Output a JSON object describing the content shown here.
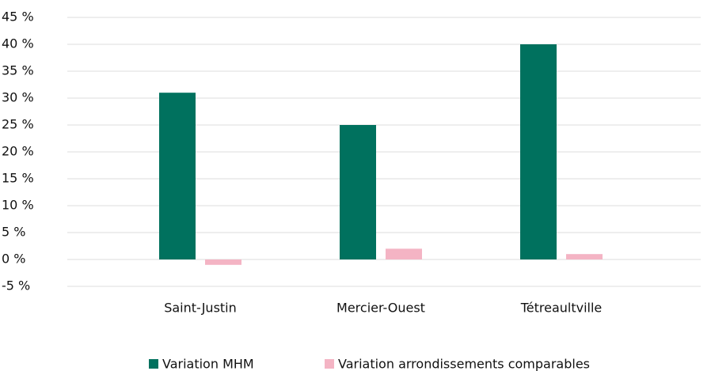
{
  "chart_data": {
    "type": "bar",
    "categories": [
      "Saint-Justin",
      "Mercier-Ouest",
      "Tétreaultville"
    ],
    "series": [
      {
        "name": "Variation MHM",
        "color": "#00715e",
        "values": [
          31,
          25,
          40
        ]
      },
      {
        "name": "Variation arrondissements comparables",
        "color": "#f4b4c4",
        "values": [
          -1,
          2,
          1
        ]
      }
    ],
    "ylim": [
      -5,
      45
    ],
    "yticks": [
      {
        "value": -5,
        "label": "-5 %"
      },
      {
        "value": 0,
        "label": "0 %"
      },
      {
        "value": 5,
        "label": "5 %"
      },
      {
        "value": 10,
        "label": "10 %"
      },
      {
        "value": 15,
        "label": "15 %"
      },
      {
        "value": 20,
        "label": "20 %"
      },
      {
        "value": 25,
        "label": "25 %"
      },
      {
        "value": 30,
        "label": "30 %"
      },
      {
        "value": 35,
        "label": "35 %"
      },
      {
        "value": 40,
        "label": "40 %"
      },
      {
        "value": 45,
        "label": "45 %"
      }
    ],
    "grid": true,
    "legend": "bottom"
  }
}
